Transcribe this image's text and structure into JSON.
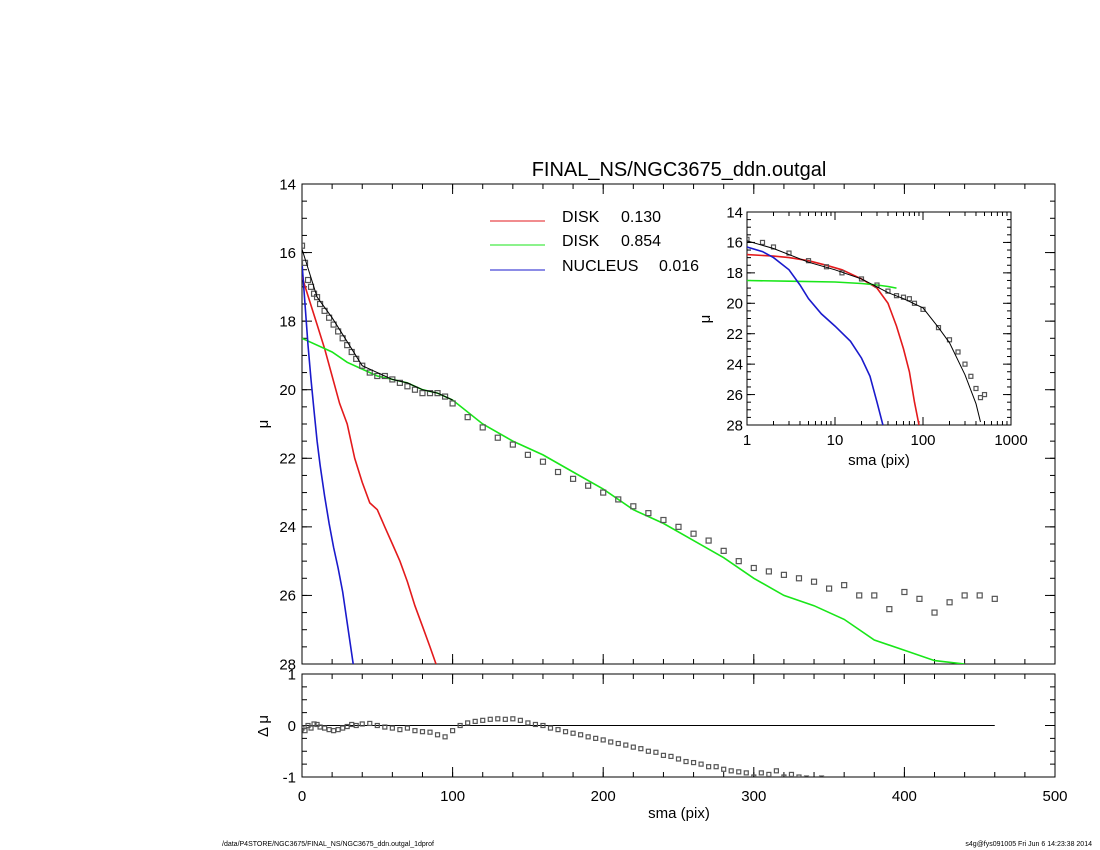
{
  "footer": {
    "left": "/data/P4STORE/NGC3675/FINAL_NS/NGC3675_ddn.outgal_1dprof",
    "right": "s4g@fys091005  Fri Jun  6 14:23:38 2014"
  },
  "colors": {
    "disk1": "#e31a1c",
    "disk2": "#19e619",
    "nucleus": "#1a1acc",
    "observed": "#555555",
    "model": "#000000"
  },
  "chart_data": [
    {
      "id": "main",
      "type": "line",
      "title": "FINAL_NS/NGC3675_ddn.outgal",
      "xlabel": "",
      "ylabel": "μ",
      "xlim": [
        0,
        500
      ],
      "ylim": [
        28,
        14
      ],
      "yreversed": true,
      "xticks": [
        0,
        100,
        200,
        300,
        400,
        500
      ],
      "yticks": [
        14,
        16,
        18,
        20,
        22,
        24,
        26,
        28
      ],
      "legend": {
        "placement": "top-center",
        "entries": [
          {
            "name": "DISK",
            "value": "0.130",
            "color": "#e31a1c"
          },
          {
            "name": "DISK",
            "value": "0.854",
            "color": "#19e619"
          },
          {
            "name": "NUCLEUS",
            "value": "0.016",
            "color": "#1a1acc"
          }
        ]
      },
      "series": [
        {
          "name": "DISK 0.130",
          "color": "#e31a1c",
          "x": [
            0,
            5,
            10,
            15,
            20,
            25,
            30,
            35,
            40,
            45,
            50,
            55,
            60,
            65,
            70,
            75,
            80,
            85,
            89
          ],
          "y": [
            16.7,
            17.4,
            18.1,
            18.8,
            19.6,
            20.4,
            21.0,
            22.0,
            22.7,
            23.3,
            23.5,
            24.0,
            24.5,
            25.0,
            25.6,
            26.3,
            26.9,
            27.5,
            28.0
          ]
        },
        {
          "name": "DISK 0.854",
          "color": "#19e619",
          "x": [
            0,
            20,
            30,
            40,
            50,
            60,
            70,
            80,
            90,
            100,
            120,
            140,
            160,
            180,
            200,
            220,
            240,
            260,
            280,
            300,
            320,
            340,
            360,
            380,
            400,
            420,
            440
          ],
          "y": [
            18.5,
            18.9,
            19.2,
            19.4,
            19.6,
            19.7,
            19.8,
            20.0,
            20.1,
            20.3,
            21.0,
            21.5,
            21.9,
            22.4,
            22.9,
            23.5,
            23.9,
            24.4,
            24.9,
            25.5,
            26.0,
            26.3,
            26.7,
            27.3,
            27.6,
            27.9,
            28.0
          ]
        },
        {
          "name": "NUCLEUS 0.016",
          "color": "#1a1acc",
          "x": [
            0,
            2,
            4,
            6,
            8,
            10,
            12,
            15,
            18,
            21,
            24,
            27,
            30,
            32,
            34
          ],
          "y": [
            16.3,
            17.5,
            18.7,
            19.7,
            20.6,
            21.5,
            22.2,
            23.1,
            23.9,
            24.6,
            25.2,
            25.9,
            26.8,
            27.4,
            28.0
          ]
        },
        {
          "name": "observed",
          "color": "#555555",
          "marker": "square",
          "x": [
            0,
            2,
            4,
            6,
            8,
            10,
            12,
            15,
            18,
            21,
            24,
            27,
            30,
            33,
            36,
            40,
            45,
            50,
            55,
            60,
            65,
            70,
            75,
            80,
            85,
            90,
            95,
            100,
            110,
            120,
            130,
            140,
            150,
            160,
            170,
            180,
            190,
            200,
            210,
            220,
            230,
            240,
            250,
            260,
            270,
            280,
            290,
            300,
            310,
            320,
            330,
            340,
            350,
            360,
            370,
            380,
            390,
            400,
            410,
            420,
            430,
            440,
            450,
            460
          ],
          "y": [
            15.8,
            16.3,
            16.8,
            17.0,
            17.2,
            17.3,
            17.5,
            17.7,
            17.9,
            18.1,
            18.3,
            18.5,
            18.7,
            18.9,
            19.1,
            19.3,
            19.5,
            19.6,
            19.6,
            19.7,
            19.8,
            19.9,
            20.0,
            20.1,
            20.1,
            20.1,
            20.2,
            20.4,
            20.8,
            21.1,
            21.4,
            21.6,
            21.9,
            22.1,
            22.4,
            22.6,
            22.8,
            23.0,
            23.2,
            23.4,
            23.6,
            23.8,
            24.0,
            24.2,
            24.4,
            24.7,
            25.0,
            25.2,
            25.3,
            25.4,
            25.5,
            25.6,
            25.8,
            25.7,
            26.0,
            26.0,
            26.4,
            25.9,
            26.1,
            26.5,
            26.2,
            26.0,
            26.0,
            26.1
          ]
        },
        {
          "name": "model",
          "color": "#000000",
          "x": [
            0,
            10,
            20,
            30,
            40,
            50,
            60,
            70,
            80,
            90,
            100
          ],
          "y": [
            15.9,
            17.3,
            17.9,
            18.6,
            19.3,
            19.5,
            19.7,
            19.8,
            20.0,
            20.1,
            20.3
          ]
        }
      ]
    },
    {
      "id": "inset",
      "type": "line",
      "title": "",
      "xlabel": "sma (pix)",
      "ylabel": "μ",
      "xscale": "log",
      "xlim": [
        1,
        1000
      ],
      "ylim": [
        28,
        14
      ],
      "yreversed": true,
      "xticks": [
        1,
        10,
        100,
        1000
      ],
      "xticklabels": [
        "1",
        "10",
        "100",
        "1000"
      ],
      "yticks": [
        14,
        16,
        18,
        20,
        22,
        24,
        26,
        28
      ],
      "series": [
        {
          "name": "DISK 0.130",
          "color": "#e31a1c",
          "x": [
            1,
            2,
            3,
            5,
            8,
            12,
            20,
            30,
            40,
            50,
            60,
            70,
            80,
            90
          ],
          "y": [
            16.8,
            16.9,
            17.0,
            17.2,
            17.5,
            17.8,
            18.4,
            19.0,
            20.0,
            21.5,
            23.0,
            24.5,
            26.5,
            28.0
          ]
        },
        {
          "name": "DISK 0.854",
          "color": "#19e619",
          "x": [
            1,
            3,
            10,
            20,
            30,
            40,
            50
          ],
          "y": [
            18.5,
            18.55,
            18.6,
            18.7,
            18.8,
            18.9,
            19.0
          ]
        },
        {
          "name": "NUCLEUS 0.016",
          "color": "#1a1acc",
          "x": [
            1,
            1.5,
            2,
            3,
            4,
            5,
            7,
            10,
            15,
            20,
            25,
            30,
            35
          ],
          "y": [
            16.3,
            16.6,
            17.0,
            17.8,
            18.8,
            19.7,
            20.7,
            21.5,
            22.5,
            23.6,
            24.8,
            26.5,
            28.0
          ]
        },
        {
          "name": "observed",
          "color": "#555555",
          "marker": "square",
          "x": [
            1,
            1.5,
            2,
            3,
            5,
            8,
            12,
            20,
            30,
            40,
            50,
            60,
            70,
            80,
            100,
            150,
            200,
            250,
            300,
            350,
            400,
            450,
            500
          ],
          "y": [
            15.8,
            16.0,
            16.3,
            16.7,
            17.2,
            17.6,
            18.0,
            18.4,
            18.8,
            19.2,
            19.5,
            19.6,
            19.7,
            20.0,
            20.4,
            21.6,
            22.4,
            23.2,
            24.0,
            24.8,
            25.6,
            26.2,
            26.0
          ]
        },
        {
          "name": "model",
          "color": "#000000",
          "x": [
            1,
            2,
            5,
            10,
            20,
            40,
            60,
            100,
            150,
            200,
            300,
            400,
            450
          ],
          "y": [
            15.9,
            16.4,
            17.3,
            17.8,
            18.4,
            19.3,
            19.7,
            20.3,
            21.6,
            22.6,
            24.7,
            26.6,
            27.8
          ]
        }
      ]
    },
    {
      "id": "residual",
      "type": "scatter",
      "title": "",
      "xlabel": "sma (pix)",
      "ylabel": "Δ μ",
      "xlim": [
        0,
        500
      ],
      "ylim": [
        -1,
        1
      ],
      "xticks": [
        0,
        100,
        200,
        300,
        400,
        500
      ],
      "xticklabels": [
        "0",
        "100",
        "200",
        "300",
        "400",
        "500"
      ],
      "yticks": [
        -1,
        0,
        1
      ],
      "zero_line_to": 460,
      "series": [
        {
          "name": "residual",
          "color": "#555555",
          "marker": "square",
          "x": [
            0,
            2,
            4,
            6,
            8,
            10,
            12,
            15,
            18,
            21,
            24,
            27,
            30,
            33,
            36,
            40,
            45,
            50,
            55,
            60,
            65,
            70,
            75,
            80,
            85,
            90,
            95,
            100,
            105,
            110,
            115,
            120,
            125,
            130,
            135,
            140,
            145,
            150,
            155,
            160,
            165,
            170,
            175,
            180,
            185,
            190,
            195,
            200,
            205,
            210,
            215,
            220,
            225,
            230,
            235,
            240,
            245,
            250,
            255,
            260,
            265,
            270,
            275,
            280,
            285,
            290,
            295,
            300,
            305,
            310,
            315,
            320,
            325,
            330,
            335,
            340,
            345
          ],
          "y": [
            -0.05,
            -0.1,
            0.0,
            -0.05,
            0.03,
            0.02,
            -0.03,
            -0.05,
            -0.08,
            -0.1,
            -0.08,
            -0.05,
            -0.02,
            0.02,
            0.0,
            0.03,
            0.04,
            0.0,
            -0.03,
            -0.05,
            -0.08,
            -0.05,
            -0.1,
            -0.12,
            -0.13,
            -0.18,
            -0.22,
            -0.1,
            0.0,
            0.05,
            0.08,
            0.1,
            0.12,
            0.13,
            0.12,
            0.13,
            0.1,
            0.05,
            0.02,
            0.0,
            -0.05,
            -0.08,
            -0.12,
            -0.15,
            -0.18,
            -0.22,
            -0.25,
            -0.28,
            -0.32,
            -0.35,
            -0.38,
            -0.42,
            -0.45,
            -0.5,
            -0.52,
            -0.58,
            -0.6,
            -0.65,
            -0.7,
            -0.72,
            -0.75,
            -0.8,
            -0.8,
            -0.85,
            -0.88,
            -0.9,
            -0.92,
            -1.0,
            -0.92,
            -0.95,
            -0.88,
            -1.0,
            -0.95,
            -1.0,
            -1.02,
            -1.05,
            -1.02
          ]
        }
      ]
    }
  ]
}
